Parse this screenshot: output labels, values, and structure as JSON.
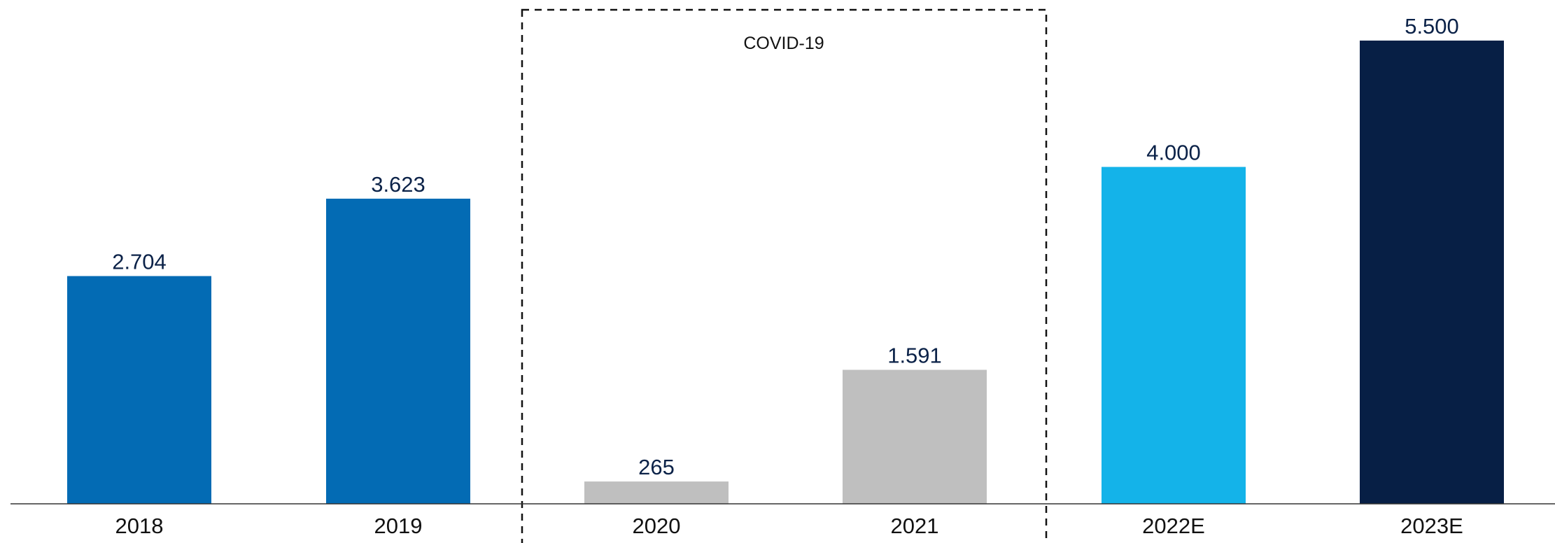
{
  "chart_data": {
    "type": "bar",
    "categories": [
      "2018",
      "2019",
      "2020",
      "2021",
      "2022E",
      "2023E"
    ],
    "values": [
      2704,
      3623,
      265,
      1591,
      4000,
      5500
    ],
    "value_labels": [
      "2.704",
      "3.623",
      "265",
      "1.591",
      "4.000",
      "5.500"
    ],
    "bar_colors": [
      "#036BB4",
      "#036BB4",
      "#BFBFBF",
      "#BFBFBF",
      "#14B3E9",
      "#071F45"
    ],
    "ylim": [
      0,
      5500
    ],
    "grid": false,
    "legend": "none",
    "annotation": {
      "label": "COVID-19",
      "style": "dashed-box",
      "categories": [
        "2020",
        "2021"
      ]
    }
  }
}
